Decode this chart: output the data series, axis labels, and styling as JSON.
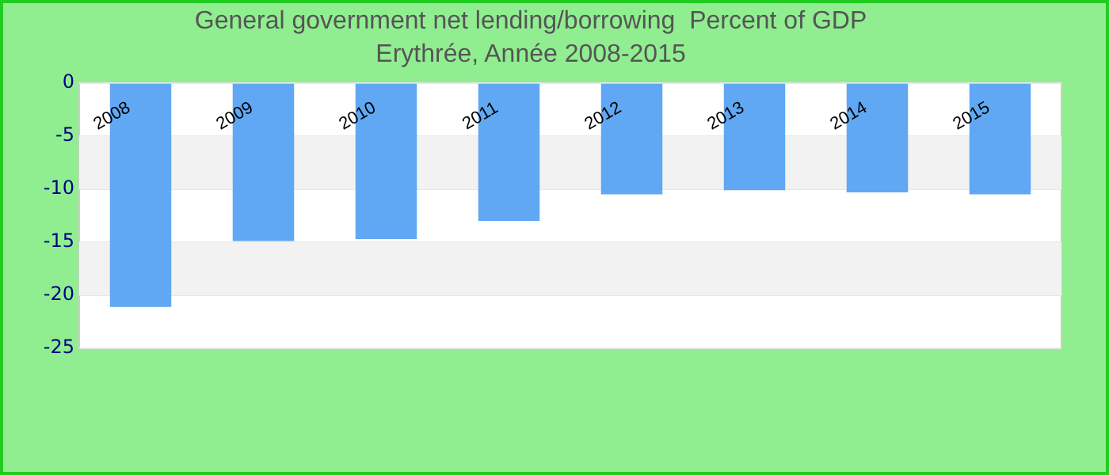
{
  "chart_data": {
    "type": "bar",
    "title": "General government net lending/borrowing  Percent of GDP",
    "subtitle": "Erythrée, Année 2008-2015",
    "categories": [
      "2008",
      "2009",
      "2010",
      "2011",
      "2012",
      "2013",
      "2014",
      "2015"
    ],
    "values": [
      -21.1,
      -14.9,
      -14.7,
      -13.0,
      -10.5,
      -10.1,
      -10.3,
      -10.5
    ],
    "color": "#60a8f4",
    "ylim": [
      -25,
      0
    ],
    "yticks": [
      0,
      -5,
      -10,
      -15,
      -20,
      -25
    ],
    "grid": true,
    "legend": false
  }
}
